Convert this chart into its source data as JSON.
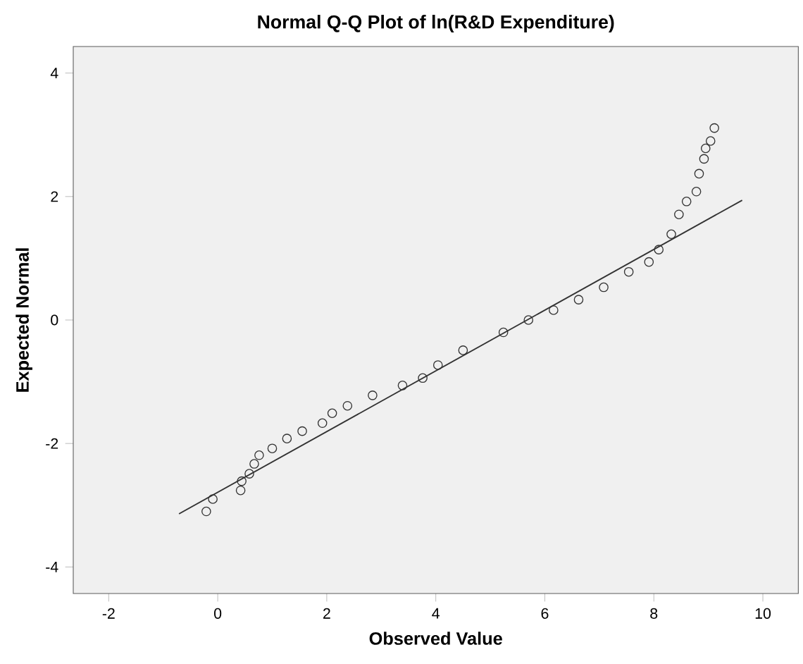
{
  "chart_data": {
    "type": "scatter",
    "title": "Normal Q-Q Plot of ln(R&D Expenditure)",
    "xlabel": "Observed Value",
    "ylabel": "Expected Normal",
    "xlim": [
      -2.65,
      10.65
    ],
    "ylim": [
      -4.43,
      4.43
    ],
    "xticks": [
      -2,
      0,
      2,
      4,
      6,
      8,
      10
    ],
    "yticks": [
      -4,
      -2,
      0,
      2,
      4
    ],
    "grid": false,
    "marker": "circle",
    "series": [
      {
        "color": "#333333",
        "x": [
          -0.21,
          -0.09,
          0.42,
          0.44,
          0.58,
          0.67,
          0.76,
          1.0,
          1.27,
          1.55,
          1.92,
          2.1,
          2.38,
          2.84,
          3.39,
          3.76,
          4.04,
          4.5,
          5.24,
          5.7,
          6.16,
          6.62,
          7.08,
          7.54,
          7.91,
          8.09,
          8.32,
          8.46,
          8.6,
          8.78,
          8.83,
          8.92,
          8.95,
          9.04,
          9.11
        ],
        "values": [
          -3.1,
          -2.9,
          -2.76,
          -2.61,
          -2.49,
          -2.33,
          -2.19,
          -2.08,
          -1.92,
          -1.8,
          -1.67,
          -1.51,
          -1.39,
          -1.22,
          -1.06,
          -0.94,
          -0.73,
          -0.49,
          -0.2,
          0.0,
          0.16,
          0.33,
          0.53,
          0.78,
          0.94,
          1.14,
          1.39,
          1.71,
          1.92,
          2.08,
          2.37,
          2.61,
          2.78,
          2.9,
          3.11
        ]
      },
      {
        "type": "line",
        "marker": "none",
        "color": "#333333",
        "x": [
          -0.71,
          9.62
        ],
        "values": [
          -3.14,
          1.94
        ]
      }
    ]
  }
}
